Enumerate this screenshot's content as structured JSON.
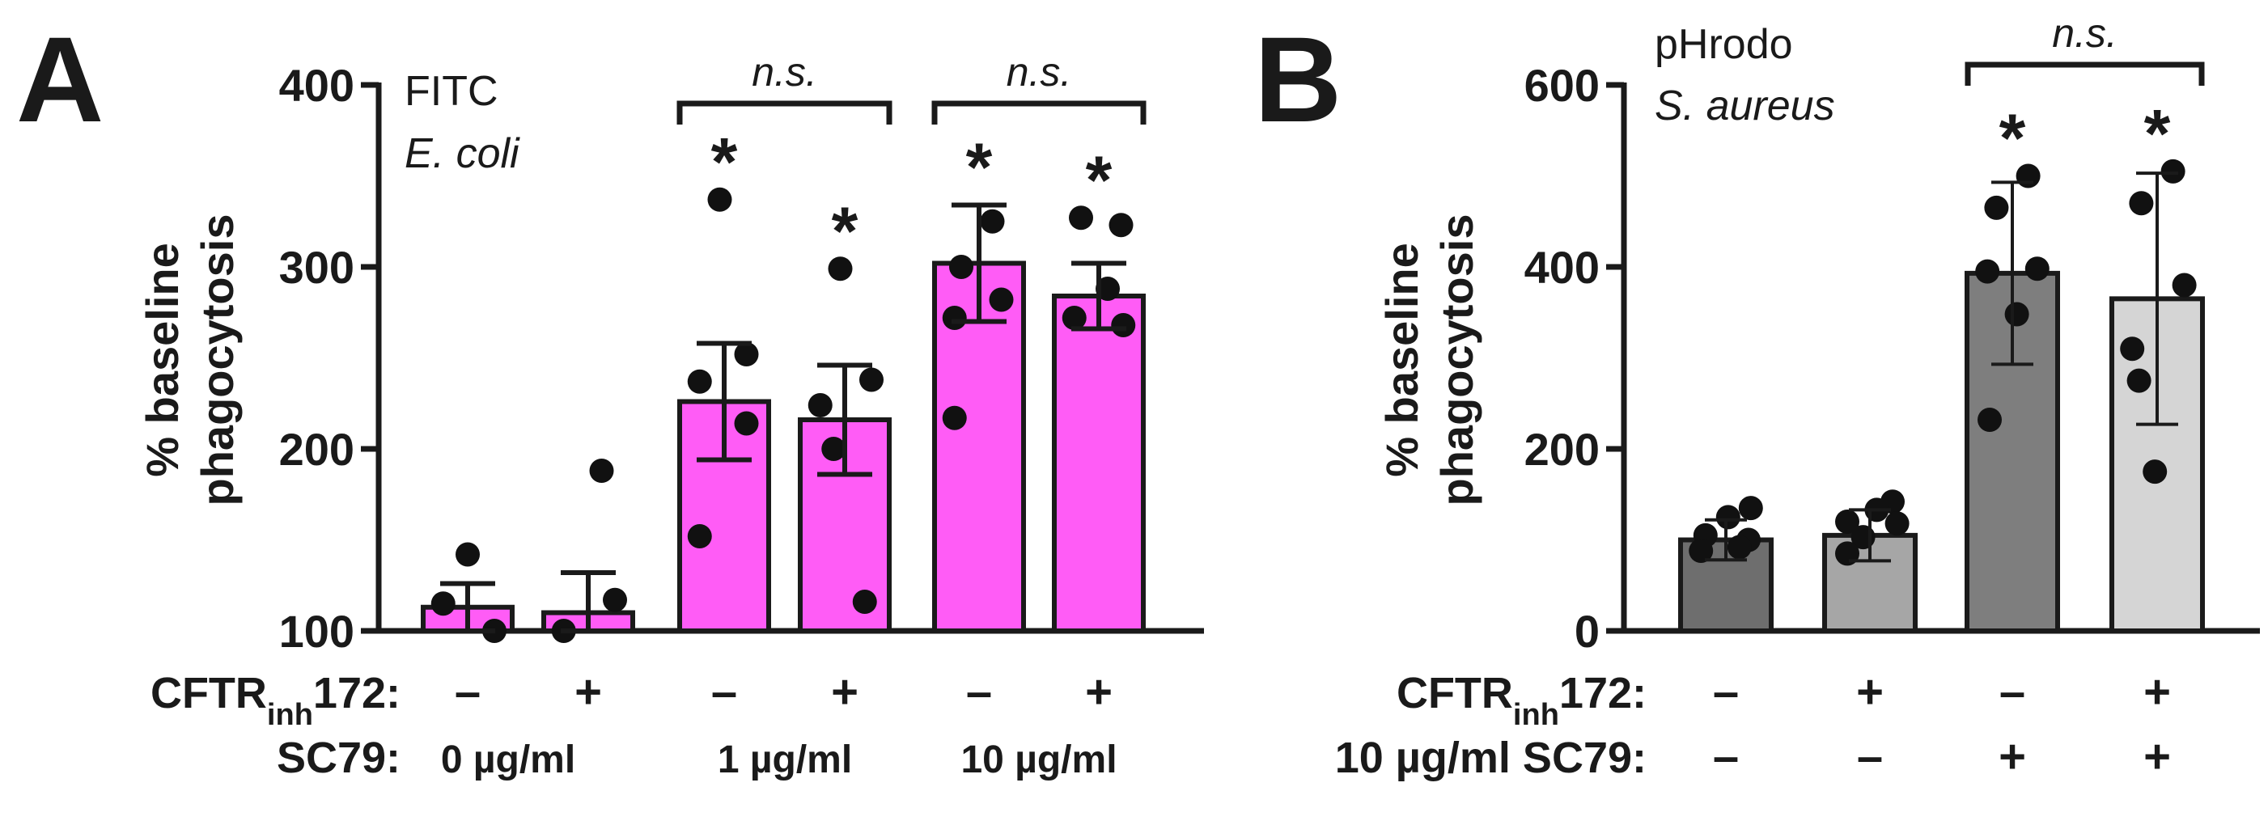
{
  "chart_data": [
    {
      "panel": "A",
      "type": "bar",
      "ylabel_lines": [
        "% baseline",
        "phagocytosis"
      ],
      "ylim": [
        100,
        400
      ],
      "yticks": [
        "100",
        "200",
        "300",
        "400"
      ],
      "annotation": [
        "FITC",
        "E. coli"
      ],
      "bar_color": "#ff5cf6",
      "error_type": "SEM",
      "row_labels": {
        "inhibitor": "CFTR",
        "inhibitor_sub": "inh",
        "inhibitor_suffix": "172:",
        "sc79": "SC79:"
      },
      "series": [
        {
          "cftr_inh172": "–",
          "mean": 113,
          "err": 13,
          "points": [
            142,
            115,
            100
          ]
        },
        {
          "cftr_inh172": "+",
          "mean": 110,
          "err": 22,
          "points": [
            188,
            117,
            100
          ]
        },
        {
          "cftr_inh172": "–",
          "mean": 226,
          "err": 32,
          "points": [
            337,
            252,
            237,
            214,
            152
          ]
        },
        {
          "cftr_inh172": "+",
          "mean": 216,
          "err": 30,
          "points": [
            299,
            238,
            224,
            200,
            116
          ]
        },
        {
          "cftr_inh172": "–",
          "mean": 302,
          "err": 32,
          "points": [
            325,
            300,
            272,
            282,
            217
          ]
        },
        {
          "cftr_inh172": "+",
          "mean": 284,
          "err": 18,
          "points": [
            327,
            323,
            288,
            272,
            268
          ]
        }
      ],
      "sc79_groups": [
        "0 µg/ml",
        "1 µg/ml",
        "10 µg/ml"
      ],
      "significance_stars": [
        "*",
        "*",
        "*",
        "*"
      ],
      "comparisons": [
        "n.s.",
        "n.s."
      ]
    },
    {
      "panel": "B",
      "type": "bar",
      "ylabel_lines": [
        "% baseline",
        "phagocytosis"
      ],
      "ylim": [
        0,
        600
      ],
      "yticks": [
        "0",
        "200",
        "400",
        "600"
      ],
      "annotation": [
        "pHrodo",
        "S. aureus"
      ],
      "error_type": "SD",
      "row_labels": {
        "inhibitor": "CFTR",
        "inhibitor_sub": "inh",
        "inhibitor_suffix": "172:",
        "sc79": "10 µg/ml SC79:"
      },
      "series": [
        {
          "cftr_inh172": "–",
          "sc79": "–",
          "mean": 100,
          "err": 22,
          "color": "#6e6e6e",
          "points": [
            135,
            125,
            105,
            88,
            100,
            92
          ]
        },
        {
          "cftr_inh172": "+",
          "sc79": "–",
          "mean": 105,
          "err": 28,
          "color": "#a6a6a6",
          "points": [
            142,
            120,
            133,
            118,
            103,
            85
          ]
        },
        {
          "cftr_inh172": "–",
          "sc79": "+",
          "mean": 393,
          "err": 100,
          "color": "#7e7e7e",
          "points": [
            500,
            465,
            398,
            395,
            348,
            232
          ]
        },
        {
          "cftr_inh172": "+",
          "sc79": "+",
          "mean": 365,
          "err": 138,
          "color": "#d5d5d5",
          "points": [
            505,
            470,
            380,
            310,
            275,
            175
          ]
        }
      ],
      "significance_stars": [
        "*",
        "*"
      ],
      "comparisons": [
        "n.s."
      ]
    }
  ]
}
